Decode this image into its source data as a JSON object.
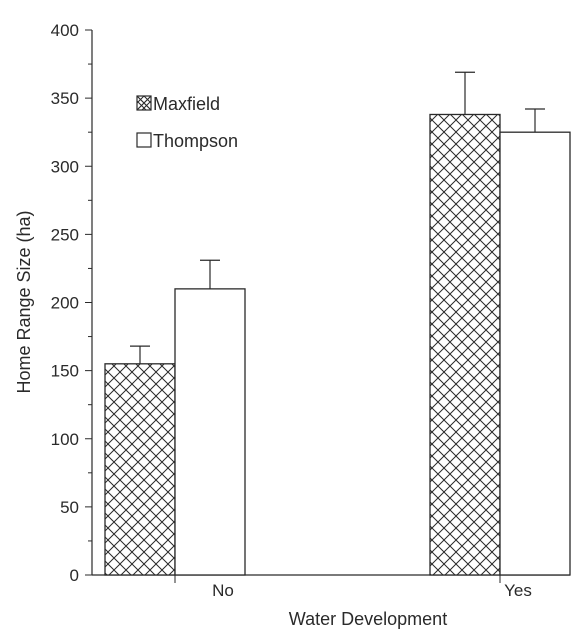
{
  "chart_data": {
    "type": "bar",
    "title": "",
    "xlabel": "Water Development",
    "ylabel": "Home Range Size (ha)",
    "categories": [
      "No",
      "Yes"
    ],
    "ylim": [
      0,
      400
    ],
    "yticks": [
      0,
      50,
      100,
      150,
      200,
      250,
      300,
      350,
      400
    ],
    "ytick_labels": [
      "0",
      "50",
      "100",
      "150",
      "200",
      "250",
      "300",
      "350",
      "400"
    ],
    "series": [
      {
        "name": "Maxfield",
        "values": [
          155,
          338
        ],
        "error": [
          13,
          31
        ],
        "fill": "crosshatch"
      },
      {
        "name": "Thompson",
        "values": [
          210,
          325
        ],
        "error": [
          21,
          17
        ],
        "fill": "white"
      }
    ],
    "legend_position": "top-left",
    "grid": false
  },
  "colors": {
    "ink": "#2a2a2a",
    "background": "#ffffff"
  }
}
